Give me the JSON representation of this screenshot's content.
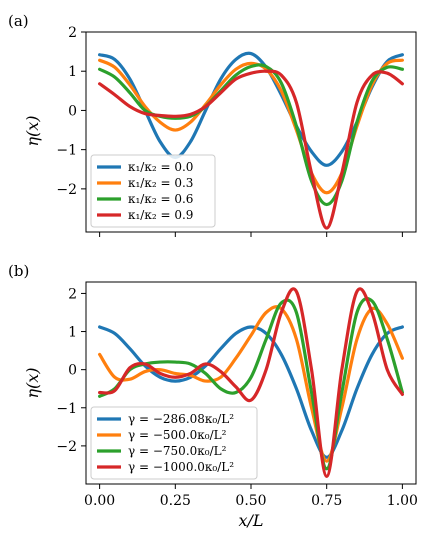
{
  "chart_data": [
    {
      "type": "line",
      "panel_label": "(a)",
      "xlabel": "",
      "ylabel": "η(x)",
      "xlim": [
        -0.0,
        1.0
      ],
      "ylim": [
        -3.1,
        2.0
      ],
      "xticks": [
        0.0,
        0.25,
        0.5,
        0.75,
        1.0
      ],
      "xtick_labels_visible": false,
      "yticks": [
        -2,
        -1,
        0,
        1,
        2
      ],
      "ytick_labels": [
        "−2",
        "−1",
        "0",
        "1",
        "2"
      ],
      "grid": false,
      "legend_position": "bottom-left",
      "series": [
        {
          "name": "κ₁/κ₂ = 0.0",
          "color": "#1f77b4",
          "x": [
            0.0,
            0.05,
            0.1,
            0.15,
            0.2,
            0.25,
            0.3,
            0.35,
            0.4,
            0.45,
            0.5,
            0.55,
            0.6,
            0.65,
            0.7,
            0.75,
            0.8,
            0.85,
            0.9,
            0.95,
            1.0
          ],
          "y": [
            1.42,
            1.3,
            0.8,
            0.0,
            -0.8,
            -1.2,
            -0.8,
            0.0,
            0.8,
            1.3,
            1.45,
            1.1,
            0.4,
            -0.4,
            -1.05,
            -1.4,
            -1.05,
            -0.3,
            0.6,
            1.25,
            1.42
          ]
        },
        {
          "name": "κ₁/κ₂ = 0.3",
          "color": "#ff7f0e",
          "x": [
            0.0,
            0.05,
            0.1,
            0.15,
            0.2,
            0.25,
            0.3,
            0.35,
            0.4,
            0.45,
            0.5,
            0.55,
            0.6,
            0.65,
            0.7,
            0.75,
            0.8,
            0.85,
            0.9,
            0.95,
            1.0
          ],
          "y": [
            1.28,
            1.1,
            0.65,
            0.1,
            -0.3,
            -0.5,
            -0.3,
            0.15,
            0.65,
            1.05,
            1.2,
            1.05,
            0.5,
            -0.5,
            -1.6,
            -2.1,
            -1.6,
            -0.4,
            0.65,
            1.2,
            1.28
          ]
        },
        {
          "name": "κ₁/κ₂ = 0.6",
          "color": "#2ca02c",
          "x": [
            0.0,
            0.05,
            0.1,
            0.15,
            0.2,
            0.25,
            0.3,
            0.35,
            0.4,
            0.45,
            0.5,
            0.55,
            0.6,
            0.65,
            0.7,
            0.75,
            0.8,
            0.85,
            0.9,
            0.95,
            1.0
          ],
          "y": [
            1.05,
            0.85,
            0.45,
            0.0,
            -0.15,
            -0.2,
            -0.15,
            0.1,
            0.5,
            0.9,
            1.12,
            1.12,
            0.7,
            -0.4,
            -1.8,
            -2.4,
            -1.8,
            -0.3,
            0.75,
            1.1,
            1.05
          ]
        },
        {
          "name": "κ₁/κ₂ = 0.9",
          "color": "#d62728",
          "x": [
            0.0,
            0.05,
            0.1,
            0.15,
            0.2,
            0.25,
            0.3,
            0.35,
            0.4,
            0.45,
            0.5,
            0.55,
            0.6,
            0.65,
            0.7,
            0.75,
            0.8,
            0.85,
            0.9,
            0.95,
            1.0
          ],
          "y": [
            0.68,
            0.4,
            0.1,
            -0.08,
            -0.13,
            -0.15,
            -0.1,
            0.1,
            0.45,
            0.8,
            0.95,
            1.0,
            0.9,
            0.2,
            -1.6,
            -3.0,
            -1.6,
            0.2,
            0.9,
            0.95,
            0.68
          ]
        }
      ]
    },
    {
      "type": "line",
      "panel_label": "(b)",
      "xlabel": "x/L",
      "ylabel": "η(x)",
      "xlim": [
        0.0,
        1.0
      ],
      "ylim": [
        -3.0,
        2.3
      ],
      "xticks": [
        0.0,
        0.25,
        0.5,
        0.75,
        1.0
      ],
      "xtick_labels": [
        "0.00",
        "0.25",
        "0.50",
        "0.75",
        "1.00"
      ],
      "yticks": [
        -2,
        -1,
        0,
        1,
        2
      ],
      "ytick_labels": [
        "−2",
        "−1",
        "0",
        "1",
        "2"
      ],
      "grid": false,
      "legend_position": "bottom-left",
      "series": [
        {
          "name": "γ = −286.08κ₀/L²",
          "color": "#1f77b4",
          "x": [
            0.0,
            0.05,
            0.1,
            0.15,
            0.2,
            0.25,
            0.3,
            0.35,
            0.4,
            0.45,
            0.5,
            0.55,
            0.6,
            0.65,
            0.7,
            0.75,
            0.8,
            0.85,
            0.9,
            0.95,
            1.0
          ],
          "y": [
            1.12,
            0.95,
            0.55,
            0.1,
            -0.2,
            -0.3,
            -0.2,
            0.1,
            0.55,
            0.95,
            1.12,
            0.95,
            0.4,
            -0.5,
            -1.6,
            -2.3,
            -1.6,
            -0.5,
            0.4,
            0.95,
            1.12
          ]
        },
        {
          "name": "γ = −500.0κ₀/L²",
          "color": "#ff7f0e",
          "x": [
            0.0,
            0.05,
            0.1,
            0.15,
            0.2,
            0.25,
            0.3,
            0.35,
            0.4,
            0.45,
            0.5,
            0.55,
            0.6,
            0.65,
            0.7,
            0.75,
            0.8,
            0.85,
            0.9,
            0.95,
            1.0
          ],
          "y": [
            0.4,
            -0.2,
            -0.25,
            -0.05,
            0.0,
            -0.1,
            -0.15,
            -0.3,
            -0.2,
            0.3,
            0.9,
            1.5,
            1.6,
            0.8,
            -1.0,
            -2.4,
            -1.0,
            0.8,
            1.6,
            1.2,
            0.3
          ]
        },
        {
          "name": "γ = −750.0κ₀/L²",
          "color": "#2ca02c",
          "x": [
            0.0,
            0.05,
            0.1,
            0.15,
            0.2,
            0.25,
            0.3,
            0.35,
            0.4,
            0.45,
            0.5,
            0.55,
            0.6,
            0.65,
            0.7,
            0.75,
            0.8,
            0.85,
            0.9,
            0.95,
            1.0
          ],
          "y": [
            -0.7,
            -0.5,
            0.0,
            0.15,
            0.2,
            0.2,
            0.15,
            -0.1,
            -0.5,
            -0.6,
            -0.2,
            0.8,
            1.75,
            1.5,
            -0.6,
            -2.6,
            -0.6,
            1.5,
            1.8,
            0.8,
            -0.6
          ]
        },
        {
          "name": "γ = −1000.0κ₀/L²",
          "color": "#d62728",
          "x": [
            0.0,
            0.05,
            0.1,
            0.15,
            0.2,
            0.25,
            0.3,
            0.35,
            0.4,
            0.45,
            0.5,
            0.55,
            0.6,
            0.65,
            0.7,
            0.75,
            0.8,
            0.85,
            0.9,
            0.95,
            1.0
          ],
          "y": [
            -0.6,
            -0.55,
            0.05,
            0.15,
            -0.1,
            -0.2,
            -0.1,
            0.15,
            -0.05,
            -0.45,
            -0.8,
            0.0,
            1.5,
            2.05,
            0.0,
            -2.8,
            0.0,
            2.05,
            1.5,
            0.0,
            -0.65
          ]
        }
      ]
    }
  ]
}
